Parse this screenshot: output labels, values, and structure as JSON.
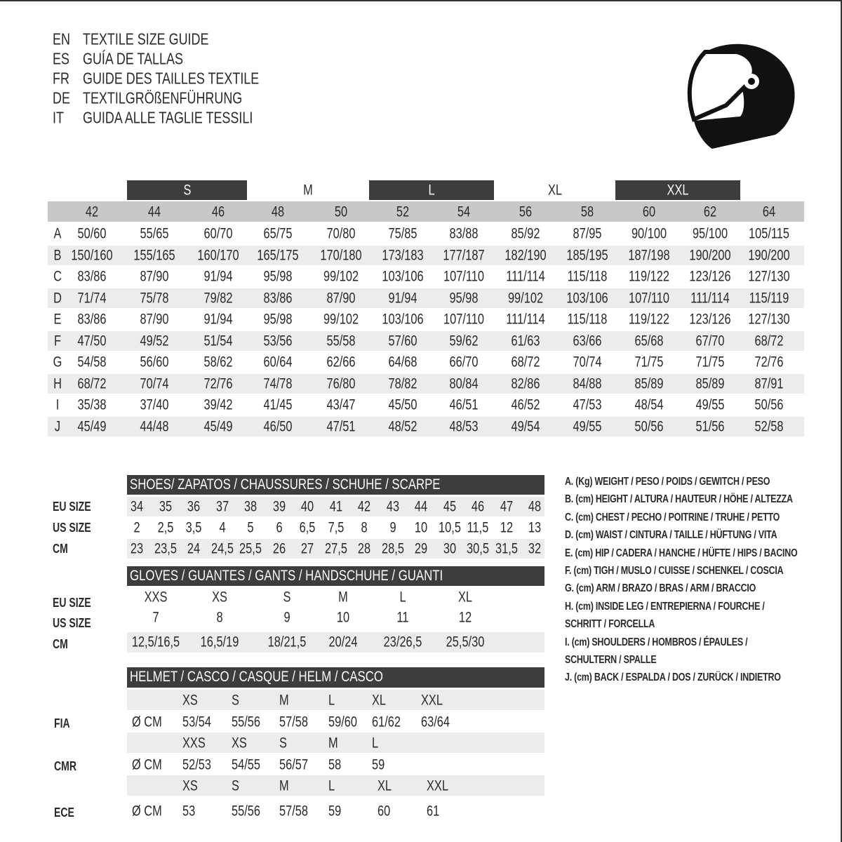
{
  "titles": [
    {
      "code": "EN",
      "text": "TEXTILE SIZE GUIDE"
    },
    {
      "code": "ES",
      "text": "GUÍA DE TALLAS"
    },
    {
      "code": "FR",
      "text": "GUIDE DES TAILLES TEXTILE"
    },
    {
      "code": "DE",
      "text": "TEXTILGRÖßENFÜHRUNG"
    },
    {
      "code": "IT",
      "text": "GUIDA ALLE TAGLIE TESSILI"
    }
  ],
  "icon": "motorcycle-helmet-icon",
  "textile": {
    "size_groups": [
      {
        "label": "S",
        "dark": true
      },
      {
        "label": "M",
        "dark": false
      },
      {
        "label": "L",
        "dark": true
      },
      {
        "label": "XL",
        "dark": false
      },
      {
        "label": "XXL",
        "dark": true
      }
    ],
    "sizes": [
      "42",
      "44",
      "46",
      "48",
      "50",
      "52",
      "54",
      "56",
      "58",
      "60",
      "62",
      "64"
    ],
    "rows": [
      {
        "key": "A",
        "values": [
          "50/60",
          "55/65",
          "60/70",
          "65/75",
          "70/80",
          "75/85",
          "83/88",
          "85/92",
          "87/95",
          "90/100",
          "95/100",
          "105/115"
        ]
      },
      {
        "key": "B",
        "values": [
          "150/160",
          "155/165",
          "160/170",
          "165/175",
          "170/180",
          "173/183",
          "177/187",
          "182/190",
          "185/195",
          "187/198",
          "190/200",
          "190/200"
        ]
      },
      {
        "key": "C",
        "values": [
          "83/86",
          "87/90",
          "91/94",
          "95/98",
          "99/102",
          "103/106",
          "107/110",
          "111/114",
          "115/118",
          "119/122",
          "123/126",
          "127/130"
        ]
      },
      {
        "key": "D",
        "values": [
          "71/74",
          "75/78",
          "79/82",
          "83/86",
          "87/90",
          "91/94",
          "95/98",
          "99/102",
          "103/106",
          "107/110",
          "111/114",
          "115/119"
        ]
      },
      {
        "key": "E",
        "values": [
          "83/86",
          "87/90",
          "91/94",
          "95/98",
          "99/102",
          "103/106",
          "107/110",
          "111/114",
          "115/118",
          "119/122",
          "123/126",
          "127/130"
        ]
      },
      {
        "key": "F",
        "values": [
          "47/50",
          "49/52",
          "51/54",
          "53/56",
          "55/58",
          "57/60",
          "59/62",
          "61/63",
          "63/66",
          "65/68",
          "67/70",
          "68/72"
        ]
      },
      {
        "key": "G",
        "values": [
          "54/58",
          "56/60",
          "58/62",
          "60/64",
          "62/66",
          "64/68",
          "66/70",
          "68/72",
          "70/74",
          "71/75",
          "71/75",
          "72/76"
        ]
      },
      {
        "key": "H",
        "values": [
          "68/72",
          "70/74",
          "72/76",
          "74/78",
          "76/80",
          "78/82",
          "80/84",
          "82/86",
          "84/88",
          "85/89",
          "85/89",
          "87/91"
        ]
      },
      {
        "key": "I",
        "values": [
          "35/38",
          "37/40",
          "39/42",
          "41/45",
          "43/47",
          "45/50",
          "46/51",
          "46/52",
          "47/53",
          "48/54",
          "49/55",
          "50/56"
        ]
      },
      {
        "key": "J",
        "values": [
          "45/49",
          "44/48",
          "45/49",
          "46/50",
          "47/51",
          "48/52",
          "48/53",
          "49/54",
          "49/55",
          "50/56",
          "51/56",
          "52/58"
        ]
      }
    ]
  },
  "shoes": {
    "title": "SHOES/ ZAPATOS / CHAUSSURES / SCHUHE / SCARPE",
    "rows": [
      {
        "label": "EU SIZE",
        "values": [
          "34",
          "35",
          "36",
          "37",
          "38",
          "39",
          "40",
          "41",
          "42",
          "43",
          "44",
          "45",
          "46",
          "47",
          "48"
        ]
      },
      {
        "label": "US SIZE",
        "values": [
          "2",
          "2,5",
          "3,5",
          "4",
          "5",
          "6",
          "6,5",
          "7,5",
          "8",
          "9",
          "10",
          "10,5",
          "11,5",
          "12",
          "13"
        ]
      },
      {
        "label": "CM",
        "values": [
          "23",
          "23,5",
          "24",
          "24,5",
          "25,5",
          "26",
          "27",
          "27,5",
          "28",
          "28,5",
          "29",
          "30",
          "30,5",
          "31,5",
          "32"
        ]
      }
    ]
  },
  "gloves": {
    "title": "GLOVES / GUANTES / GANTS / HANDSCHUHE / GUANTI",
    "rows": [
      {
        "label": "EU SIZE",
        "values": [
          "XXS",
          "XS",
          "S",
          "M",
          "L",
          "XL"
        ]
      },
      {
        "label": "US SIZE",
        "values": [
          "7",
          "8",
          "9",
          "10",
          "11",
          "12"
        ]
      },
      {
        "label": "CM",
        "values": [
          "12,5/16,5",
          "16,5/19",
          "18/21,5",
          "20/24",
          "23/26,5",
          "25,5/30"
        ]
      }
    ]
  },
  "helmet": {
    "title": "HELMET / CASCO / CASQUE / HELM / CASCO",
    "unit": "Ø CM",
    "groups": [
      {
        "label": "FIA",
        "sizes": [
          "XS",
          "S",
          "M",
          "L",
          "XL",
          "XXL"
        ],
        "values": [
          "53/54",
          "55/56",
          "57/58",
          "59/60",
          "61/62",
          "63/64"
        ]
      },
      {
        "label": "CMR",
        "sizes": [
          "XXS",
          "XS",
          "S",
          "M",
          "L"
        ],
        "values": [
          "52/53",
          "54/55",
          "56/57",
          "58",
          "59"
        ]
      },
      {
        "label": "ECE",
        "sizes": [
          "XS",
          "S",
          "M",
          "L",
          "XL",
          "XXL"
        ],
        "values": [
          "53",
          "55/56",
          "57/58",
          "59",
          "60",
          "61"
        ]
      }
    ]
  },
  "legend": [
    "A. (Kg) WEIGHT / PESO / POIDS / GEWITCH / PESO",
    "B. (cm) HEIGHT / ALTURA / HAUTEUR / HÖHE / ALTEZZA",
    "C. (cm) CHEST / PECHO / POITRINE / TRUHE / PETTO",
    "D. (cm) WAIST / CINTURA / TAILLE / HÜFTUNG / VITA",
    "E. (cm) HIP / CADERA / HANCHE / HÜFTE / HIPS /  BACINO",
    "F.  (cm) TIGH / MUSLO / CUISSE / SCHENKEL / COSCIA",
    "G. (cm) ARM  / BRAZO / BRAS / ARM / BRACCIO",
    "H. (cm) INSIDE LEG / ENTREPIERNA / FOURCHE /",
    "SCHRITT / FORCELLA",
    "I.  (cm) SHOULDERS / HOMBROS / ÉPAULES /",
    "SCHULTERN / SPALLE",
    "J. (cm) BACK / ESPALDA / DOS / ZURÜCK / INDIETRO"
  ]
}
